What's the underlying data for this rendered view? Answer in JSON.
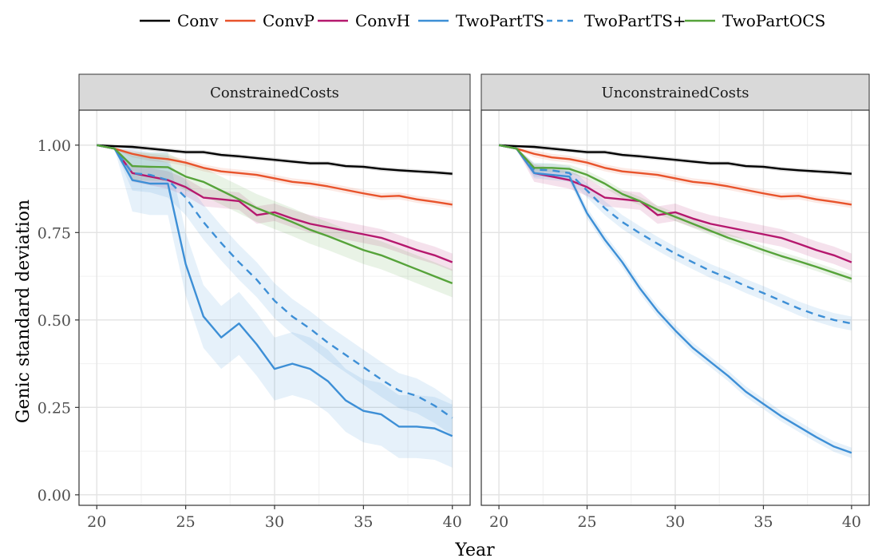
{
  "chart_data": {
    "type": "line",
    "title": "",
    "xlabel": "Year",
    "ylabel": "Genic standard deviation",
    "xlim": [
      19,
      41
    ],
    "ylim": [
      -0.03,
      1.1
    ],
    "x_ticks": [
      20,
      25,
      30,
      35,
      40
    ],
    "x_tick_labels": [
      "20",
      "25",
      "30",
      "35",
      "40"
    ],
    "y_ticks": [
      0,
      0.25,
      0.5,
      0.75,
      1.0
    ],
    "y_tick_labels": [
      "0.00",
      "0.25",
      "0.50",
      "0.75",
      "1.00"
    ],
    "grid": true,
    "legend_position": "top",
    "x": [
      20,
      21,
      22,
      23,
      24,
      25,
      26,
      27,
      28,
      29,
      30,
      31,
      32,
      33,
      34,
      35,
      36,
      37,
      38,
      39,
      40
    ],
    "series_style": [
      {
        "name": "Conv",
        "color": "#000000",
        "dash": false
      },
      {
        "name": "ConvP",
        "color": "#e8532b",
        "dash": false
      },
      {
        "name": "ConvH",
        "color": "#b5186e",
        "dash": false
      },
      {
        "name": "TwoPartTS",
        "color": "#3d8fd6",
        "dash": false
      },
      {
        "name": "TwoPartTS+",
        "color": "#3d8fd6",
        "dash": true
      },
      {
        "name": "TwoPartOCS",
        "color": "#56a33a",
        "dash": false
      }
    ],
    "panels": [
      {
        "title": "ConstrainedCosts",
        "series": [
          {
            "name": "Conv",
            "values": [
              1.0,
              0.997,
              0.995,
              0.99,
              0.985,
              0.98,
              0.98,
              0.972,
              0.968,
              0.963,
              0.958,
              0.953,
              0.948,
              0.948,
              0.94,
              0.938,
              0.932,
              0.928,
              0.925,
              0.922,
              0.918
            ],
            "band": 0.006
          },
          {
            "name": "ConvP",
            "values": [
              1.0,
              0.99,
              0.975,
              0.965,
              0.96,
              0.95,
              0.935,
              0.925,
              0.92,
              0.915,
              0.905,
              0.895,
              0.89,
              0.882,
              0.872,
              0.862,
              0.853,
              0.855,
              0.845,
              0.838,
              0.83
            ],
            "band": 0.01
          },
          {
            "name": "ConvH",
            "values": [
              1.0,
              0.99,
              0.92,
              0.91,
              0.9,
              0.88,
              0.85,
              0.845,
              0.84,
              0.8,
              0.808,
              0.79,
              0.775,
              0.765,
              0.755,
              0.745,
              0.735,
              0.718,
              0.7,
              0.685,
              0.665
            ],
            "band": 0.025
          },
          {
            "name": "TwoPartTS",
            "values": [
              1.0,
              0.99,
              0.9,
              0.89,
              0.89,
              0.66,
              0.51,
              0.45,
              0.49,
              0.43,
              0.36,
              0.375,
              0.36,
              0.325,
              0.27,
              0.24,
              0.23,
              0.195,
              0.195,
              0.19,
              0.168
            ],
            "band": 0.09
          },
          {
            "name": "TwoPartTS+",
            "values": [
              1.0,
              0.99,
              0.92,
              0.915,
              0.9,
              0.85,
              0.78,
              0.72,
              0.665,
              0.615,
              0.555,
              0.51,
              0.475,
              0.435,
              0.4,
              0.365,
              0.33,
              0.298,
              0.283,
              0.255,
              0.22
            ],
            "band": 0.05
          },
          {
            "name": "TwoPartOCS",
            "values": [
              1.0,
              0.99,
              0.94,
              0.938,
              0.937,
              0.91,
              0.895,
              0.87,
              0.845,
              0.82,
              0.8,
              0.78,
              0.758,
              0.74,
              0.72,
              0.7,
              0.685,
              0.665,
              0.645,
              0.625,
              0.605
            ],
            "band": 0.04
          }
        ]
      },
      {
        "title": "UnconstrainedCosts",
        "series": [
          {
            "name": "Conv",
            "values": [
              1.0,
              0.997,
              0.995,
              0.99,
              0.985,
              0.98,
              0.98,
              0.972,
              0.968,
              0.963,
              0.958,
              0.953,
              0.948,
              0.948,
              0.94,
              0.938,
              0.932,
              0.928,
              0.925,
              0.922,
              0.918
            ],
            "band": 0.006
          },
          {
            "name": "ConvP",
            "values": [
              1.0,
              0.99,
              0.975,
              0.965,
              0.96,
              0.95,
              0.935,
              0.925,
              0.92,
              0.915,
              0.905,
              0.895,
              0.89,
              0.882,
              0.872,
              0.862,
              0.853,
              0.855,
              0.845,
              0.838,
              0.83
            ],
            "band": 0.01
          },
          {
            "name": "ConvH",
            "values": [
              1.0,
              0.99,
              0.92,
              0.91,
              0.9,
              0.88,
              0.85,
              0.845,
              0.84,
              0.8,
              0.808,
              0.79,
              0.775,
              0.765,
              0.755,
              0.745,
              0.735,
              0.718,
              0.7,
              0.685,
              0.665
            ],
            "band": 0.025
          },
          {
            "name": "TwoPartTS",
            "values": [
              1.0,
              0.99,
              0.92,
              0.915,
              0.91,
              0.805,
              0.73,
              0.665,
              0.59,
              0.525,
              0.47,
              0.42,
              0.38,
              0.34,
              0.295,
              0.26,
              0.225,
              0.195,
              0.165,
              0.138,
              0.12
            ],
            "band": 0.015
          },
          {
            "name": "TwoPartTS+",
            "values": [
              1.0,
              0.99,
              0.93,
              0.928,
              0.92,
              0.87,
              0.82,
              0.78,
              0.748,
              0.718,
              0.69,
              0.665,
              0.64,
              0.62,
              0.597,
              0.577,
              0.555,
              0.533,
              0.515,
              0.5,
              0.49
            ],
            "band": 0.02
          },
          {
            "name": "TwoPartOCS",
            "values": [
              1.0,
              0.99,
              0.935,
              0.935,
              0.932,
              0.915,
              0.89,
              0.86,
              0.84,
              0.815,
              0.795,
              0.775,
              0.755,
              0.735,
              0.718,
              0.7,
              0.683,
              0.668,
              0.652,
              0.635,
              0.618
            ],
            "band": 0.012
          }
        ]
      }
    ]
  }
}
